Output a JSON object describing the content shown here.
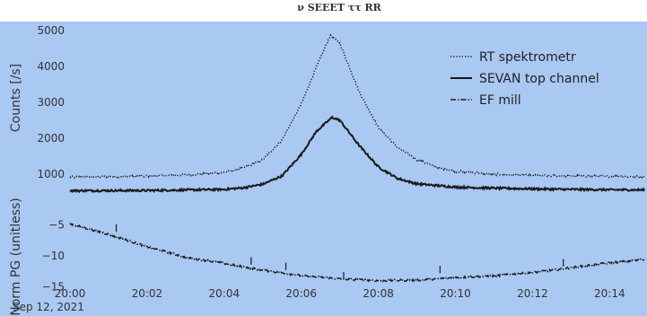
{
  "chart_data": {
    "type": "line",
    "title": "",
    "subtitle": "",
    "date_label": "Sep 12, 2021",
    "x_tick_labels": [
      "20:00",
      "20:02",
      "20:04",
      "20:06",
      "20:08",
      "20:10",
      "20:12",
      "20:14"
    ],
    "x_range_minutes": [
      0,
      14.9
    ],
    "x_units": "minutes after 20:00 on Sep 12, 2021",
    "panels": [
      {
        "id": "counts",
        "ylabel": "Counts [/s]",
        "ylim": [
          550,
          5200
        ],
        "yticks": [
          1000,
          2000,
          3000,
          4000,
          5000
        ],
        "series": [
          {
            "name": "RT spektrometr",
            "style": "dotted",
            "points": [
              [
                0,
                920
              ],
              [
                1,
                930
              ],
              [
                2,
                945
              ],
              [
                3,
                975
              ],
              [
                4,
                1050
              ],
              [
                4.5,
                1170
              ],
              [
                5,
                1400
              ],
              [
                5.5,
                1950
              ],
              [
                6,
                2950
              ],
              [
                6.4,
                4000
              ],
              [
                6.75,
                4850
              ],
              [
                7,
                4650
              ],
              [
                7.5,
                3300
              ],
              [
                8,
                2300
              ],
              [
                8.5,
                1750
              ],
              [
                9,
                1400
              ],
              [
                9.5,
                1200
              ],
              [
                10,
                1080
              ],
              [
                11,
                1000
              ],
              [
                12,
                960
              ],
              [
                13,
                950
              ],
              [
                14,
                940
              ],
              [
                14.9,
                930
              ]
            ]
          },
          {
            "name": "SEVAN top channel",
            "style": "solid",
            "points": [
              [
                0,
                540
              ],
              [
                2,
                545
              ],
              [
                4,
                575
              ],
              [
                4.5,
                620
              ],
              [
                5,
                720
              ],
              [
                5.5,
                950
              ],
              [
                6,
                1550
              ],
              [
                6.4,
                2200
              ],
              [
                6.8,
                2580
              ],
              [
                7,
                2500
              ],
              [
                7.5,
                1800
              ],
              [
                8,
                1200
              ],
              [
                8.5,
                880
              ],
              [
                9,
                730
              ],
              [
                10,
                640
              ],
              [
                11,
                610
              ],
              [
                12,
                590
              ],
              [
                13,
                575
              ],
              [
                14,
                565
              ],
              [
                14.9,
                560
              ]
            ]
          }
        ]
      },
      {
        "id": "pg",
        "ylabel": "Norm PG (unitless)",
        "ylim": [
          -15.5,
          -2
        ],
        "yticks": [
          -15,
          -10,
          -5
        ],
        "series": [
          {
            "name": "EF mill",
            "style": "dashdot",
            "points": [
              [
                0,
                -4.8
              ],
              [
                1,
                -6.5
              ],
              [
                2,
                -8.5
              ],
              [
                3,
                -10.2
              ],
              [
                4,
                -11.2
              ],
              [
                5,
                -12.3
              ],
              [
                6,
                -13.2
              ],
              [
                7,
                -13.7
              ],
              [
                8,
                -14.0
              ],
              [
                9,
                -13.9
              ],
              [
                10,
                -13.5
              ],
              [
                11,
                -13.2
              ],
              [
                12,
                -12.7
              ],
              [
                13,
                -11.9
              ],
              [
                14,
                -11.1
              ],
              [
                14.9,
                -10.6
              ]
            ]
          }
        ]
      }
    ],
    "spikes": [
      [
        1.2,
        -5.5
      ],
      [
        4.7,
        -10.8
      ],
      [
        5.6,
        -11.7
      ],
      [
        7.1,
        -13.2
      ],
      [
        9.6,
        -12.2
      ],
      [
        12.8,
        -11.1
      ]
    ],
    "legend_placement": "top-right",
    "grid": false,
    "colors": {
      "background": "#a9c8f2",
      "line": "#1a1a1a",
      "text": "#333333"
    }
  }
}
